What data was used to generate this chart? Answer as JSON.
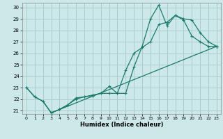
{
  "xlabel": "Humidex (Indice chaleur)",
  "xlim": [
    -0.5,
    23.5
  ],
  "ylim": [
    20.7,
    30.4
  ],
  "xticks": [
    0,
    1,
    2,
    3,
    4,
    5,
    6,
    7,
    8,
    9,
    10,
    11,
    12,
    13,
    14,
    15,
    16,
    17,
    18,
    19,
    20,
    21,
    22,
    23
  ],
  "yticks": [
    21,
    22,
    23,
    24,
    25,
    26,
    27,
    28,
    29,
    30
  ],
  "background_color": "#cce8e8",
  "grid_color": "#aacccc",
  "line_color": "#1a7a6e",
  "line1_x": [
    0,
    1,
    2,
    3,
    4,
    5,
    6,
    7,
    8,
    9,
    10,
    11,
    12,
    13,
    14,
    15,
    16,
    17,
    18,
    19,
    20,
    21,
    22,
    23
  ],
  "line1_y": [
    23.0,
    22.2,
    21.8,
    20.8,
    21.1,
    21.5,
    22.1,
    22.2,
    22.35,
    22.5,
    23.1,
    22.5,
    22.5,
    24.8,
    26.6,
    29.0,
    30.2,
    28.4,
    29.3,
    28.9,
    27.5,
    27.0,
    26.6,
    26.6
  ],
  "line2_x": [
    0,
    1,
    2,
    3,
    4,
    5,
    6,
    7,
    8,
    9,
    10,
    11,
    12,
    13,
    14,
    15,
    16,
    17,
    18,
    19,
    20,
    21,
    22,
    23
  ],
  "line2_y": [
    23.0,
    22.2,
    21.8,
    20.8,
    21.1,
    21.5,
    22.0,
    22.2,
    22.3,
    22.5,
    22.5,
    22.5,
    24.5,
    26.0,
    26.5,
    27.0,
    28.5,
    28.7,
    29.3,
    29.0,
    28.9,
    27.8,
    27.0,
    26.6
  ],
  "line3_x": [
    3,
    23
  ],
  "line3_y": [
    20.8,
    26.6
  ]
}
